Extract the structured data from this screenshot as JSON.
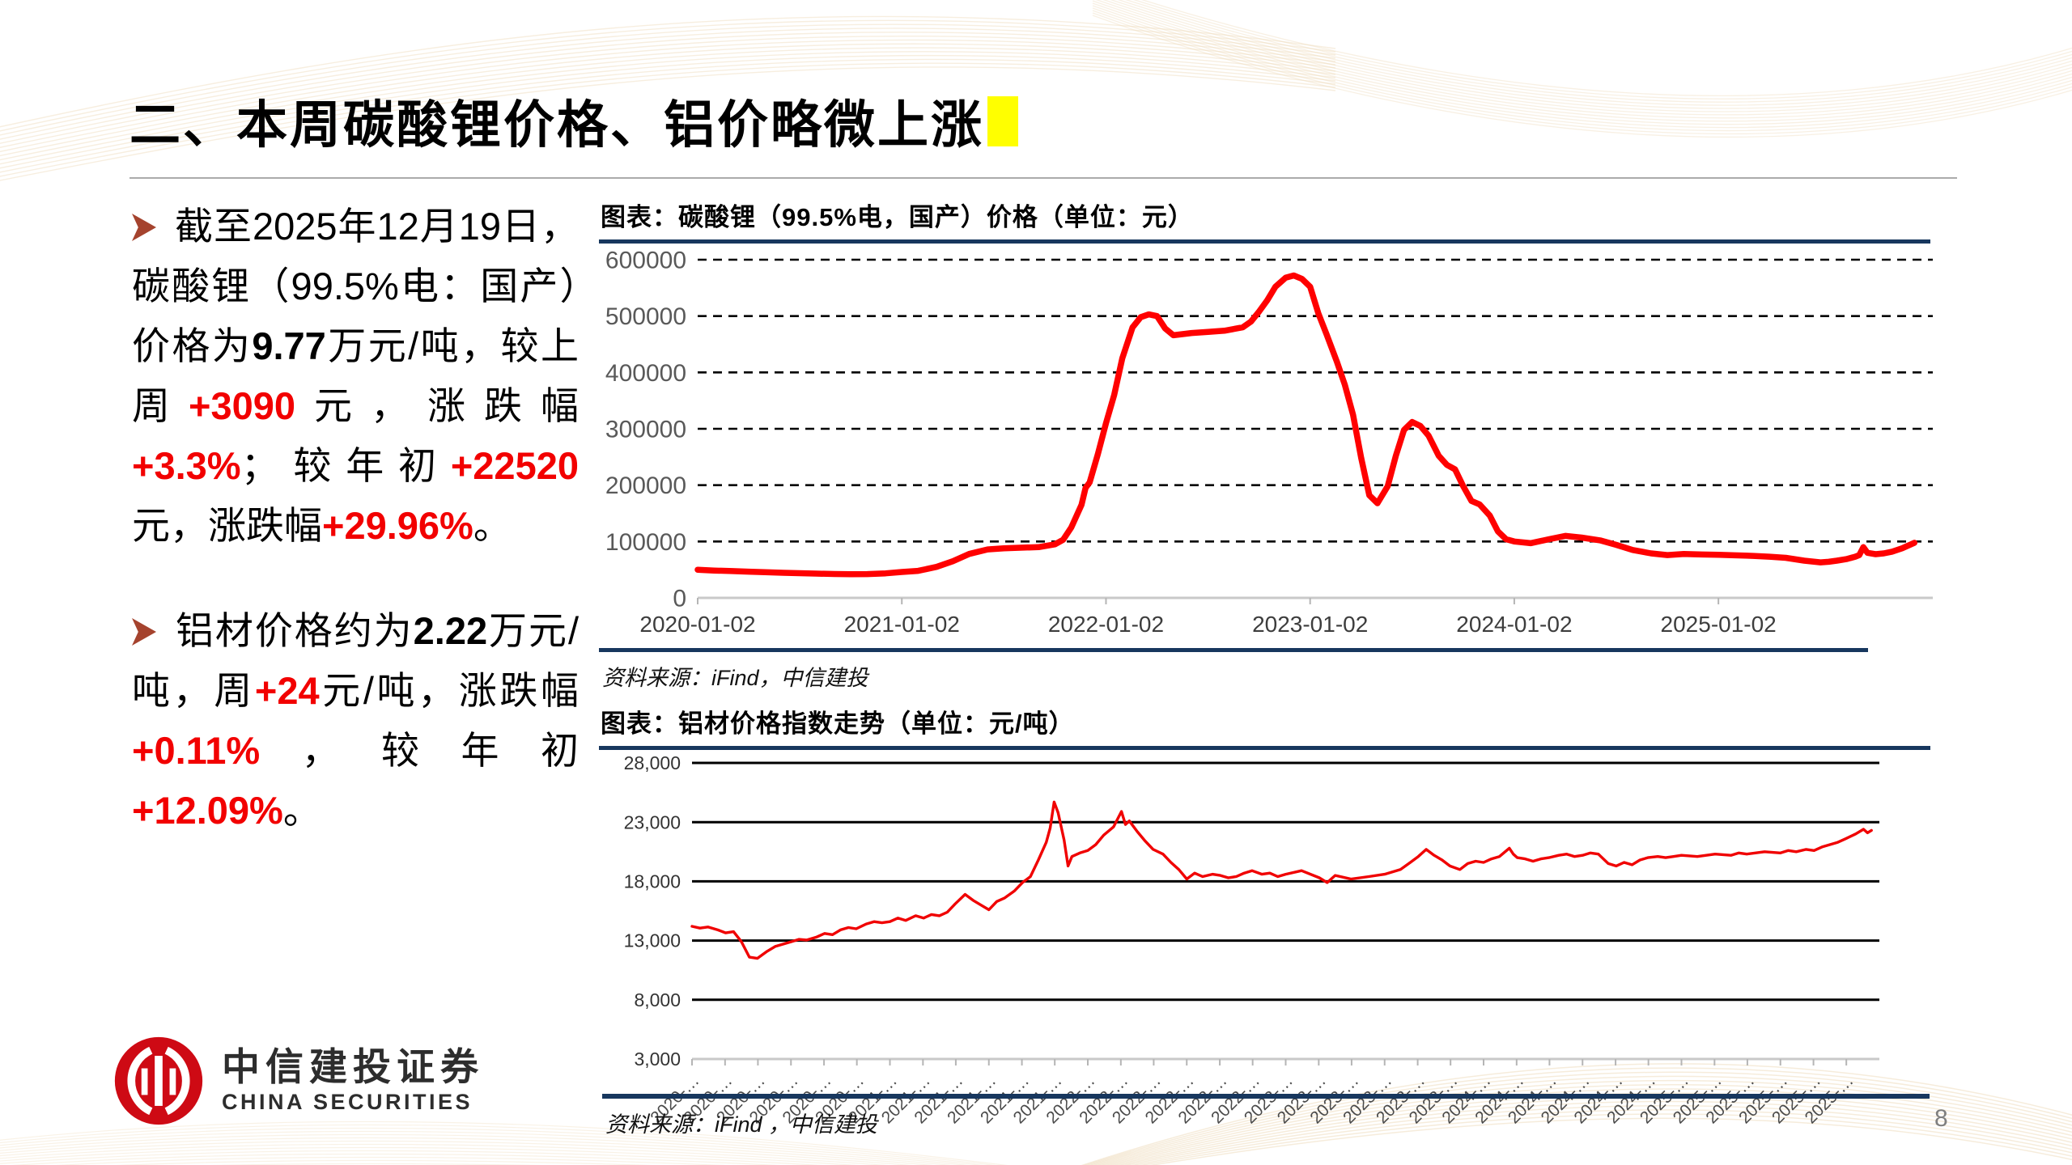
{
  "slide": {
    "title": "二、本周碳酸锂价格、铝价略微上涨",
    "page_number": "8",
    "highlight_color": "#FFFF00",
    "accent_navy": "#17375E",
    "accent_red": "#F20000",
    "bullet_arrow_color": "#A5432E"
  },
  "bullets": [
    {
      "marker": "➢",
      "segments": [
        {
          "t": "截至2025年12月19日，碳酸锂（99.5%电：国产）价格为"
        },
        {
          "t": "9.77",
          "bold": true
        },
        {
          "t": "万元/吨，较上周"
        },
        {
          "t": "+3090",
          "red": true
        },
        {
          "t": "元，涨跌幅"
        },
        {
          "t": "+3.3%",
          "red": true
        },
        {
          "t": "；较年初"
        },
        {
          "t": "+22520 ",
          "red": true
        },
        {
          "t": "元，涨跌幅"
        },
        {
          "t": "+29.96%",
          "red": true
        },
        {
          "t": "。"
        }
      ]
    },
    {
      "marker": "➢",
      "segments": [
        {
          "t": "铝材价格约为"
        },
        {
          "t": "2.22",
          "bold": true
        },
        {
          "t": "万元/吨，周"
        },
        {
          "t": "+24",
          "red": true
        },
        {
          "t": "元/吨，涨跌幅"
        },
        {
          "t": "+0.11%",
          "red": true
        },
        {
          "t": "，较年初"
        },
        {
          "t": "+12.09%",
          "red": true
        },
        {
          "t": "。"
        }
      ]
    }
  ],
  "chart_data": [
    {
      "type": "line",
      "header": "图表：碳酸锂（99.5%电，国产）价格（单位：元）",
      "title": "碳酸锂（99.5%电，国产）价格",
      "unit": "元",
      "source": "资料来源：iFind，中信建投",
      "color": "#FF0000",
      "grid": "dashed",
      "legend": "none",
      "ylim": [
        0,
        600000
      ],
      "yticks": [
        0,
        100000,
        200000,
        300000,
        400000,
        500000,
        600000
      ],
      "ytick_labels": [
        "0",
        "100000",
        "200000",
        "300000",
        "400000",
        "500000",
        "600000"
      ],
      "xlim": [
        2020,
        2026.05
      ],
      "xticks": [
        2020,
        2021,
        2022,
        2023,
        2024,
        2025
      ],
      "xtick_labels": [
        "2020-01-02",
        "2021-01-02",
        "2022-01-02",
        "2023-01-02",
        "2024-01-02",
        "2025-01-02"
      ],
      "points": [
        [
          2020.0,
          50000
        ],
        [
          2020.08,
          48500
        ],
        [
          2020.17,
          47500
        ],
        [
          2020.25,
          46500
        ],
        [
          2020.33,
          45500
        ],
        [
          2020.42,
          44500
        ],
        [
          2020.5,
          43800
        ],
        [
          2020.58,
          43000
        ],
        [
          2020.67,
          42300
        ],
        [
          2020.75,
          42000
        ],
        [
          2020.83,
          42200
        ],
        [
          2020.92,
          43500
        ],
        [
          2021.0,
          46000
        ],
        [
          2021.08,
          48000
        ],
        [
          2021.17,
          55000
        ],
        [
          2021.25,
          65000
        ],
        [
          2021.33,
          78000
        ],
        [
          2021.42,
          86000
        ],
        [
          2021.5,
          88000
        ],
        [
          2021.58,
          89000
        ],
        [
          2021.67,
          90000
        ],
        [
          2021.75,
          95000
        ],
        [
          2021.79,
          103000
        ],
        [
          2021.83,
          125000
        ],
        [
          2021.88,
          165000
        ],
        [
          2021.9,
          195000
        ],
        [
          2021.92,
          205000
        ],
        [
          2021.96,
          255000
        ],
        [
          2022.0,
          310000
        ],
        [
          2022.04,
          360000
        ],
        [
          2022.08,
          425000
        ],
        [
          2022.13,
          480000
        ],
        [
          2022.17,
          498000
        ],
        [
          2022.21,
          503000
        ],
        [
          2022.25,
          500000
        ],
        [
          2022.29,
          478000
        ],
        [
          2022.33,
          466000
        ],
        [
          2022.42,
          470000
        ],
        [
          2022.5,
          472000
        ],
        [
          2022.58,
          474000
        ],
        [
          2022.67,
          480000
        ],
        [
          2022.71,
          490000
        ],
        [
          2022.75,
          508000
        ],
        [
          2022.79,
          528000
        ],
        [
          2022.83,
          552000
        ],
        [
          2022.88,
          568000
        ],
        [
          2022.92,
          572000
        ],
        [
          2022.96,
          566000
        ],
        [
          2023.0,
          552000
        ],
        [
          2023.04,
          505000
        ],
        [
          2023.08,
          468000
        ],
        [
          2023.13,
          420000
        ],
        [
          2023.17,
          378000
        ],
        [
          2023.21,
          325000
        ],
        [
          2023.25,
          248000
        ],
        [
          2023.29,
          182000
        ],
        [
          2023.33,
          168000
        ],
        [
          2023.38,
          198000
        ],
        [
          2023.42,
          252000
        ],
        [
          2023.46,
          298000
        ],
        [
          2023.5,
          312000
        ],
        [
          2023.54,
          305000
        ],
        [
          2023.58,
          288000
        ],
        [
          2023.63,
          252000
        ],
        [
          2023.67,
          236000
        ],
        [
          2023.71,
          228000
        ],
        [
          2023.75,
          198000
        ],
        [
          2023.79,
          172000
        ],
        [
          2023.83,
          166000
        ],
        [
          2023.88,
          146000
        ],
        [
          2023.92,
          118000
        ],
        [
          2023.96,
          104000
        ],
        [
          2024.0,
          100000
        ],
        [
          2024.08,
          97000
        ],
        [
          2024.17,
          104000
        ],
        [
          2024.25,
          110000
        ],
        [
          2024.33,
          107000
        ],
        [
          2024.42,
          102000
        ],
        [
          2024.5,
          94000
        ],
        [
          2024.58,
          85000
        ],
        [
          2024.67,
          79000
        ],
        [
          2024.75,
          76000
        ],
        [
          2024.83,
          78000
        ],
        [
          2024.92,
          77000
        ],
        [
          2025.0,
          76500
        ],
        [
          2025.08,
          75500
        ],
        [
          2025.17,
          74500
        ],
        [
          2025.25,
          73000
        ],
        [
          2025.33,
          71000
        ],
        [
          2025.42,
          66000
        ],
        [
          2025.5,
          63000
        ],
        [
          2025.54,
          64000
        ],
        [
          2025.58,
          66000
        ],
        [
          2025.63,
          69000
        ],
        [
          2025.67,
          73000
        ],
        [
          2025.69,
          76000
        ],
        [
          2025.71,
          90000
        ],
        [
          2025.73,
          80000
        ],
        [
          2025.77,
          77500
        ],
        [
          2025.81,
          79000
        ],
        [
          2025.85,
          82000
        ],
        [
          2025.9,
          88000
        ],
        [
          2025.96,
          97700
        ]
      ]
    },
    {
      "type": "line",
      "header": "图表：铝材价格指数走势（单位：元/吨）",
      "title": "铝材价格指数走势",
      "unit": "元/吨",
      "source": "资料来源：iFind ，中信建投",
      "color": "#F00000",
      "grid": "solid",
      "legend": "none",
      "ylim": [
        3000,
        28000
      ],
      "yticks": [
        3000,
        8000,
        13000,
        18000,
        23000,
        28000
      ],
      "ytick_labels": [
        "3,000",
        "8,000",
        "13,000",
        "18,000",
        "23,000",
        "28,000"
      ],
      "xlim": [
        2020,
        2026.0
      ],
      "xticks": [
        2020.0,
        2020.167,
        2020.333,
        2020.5,
        2020.667,
        2020.833,
        2021.0,
        2021.167,
        2021.333,
        2021.5,
        2021.667,
        2021.833,
        2022.0,
        2022.167,
        2022.333,
        2022.5,
        2022.667,
        2022.833,
        2023.0,
        2023.167,
        2023.333,
        2023.5,
        2023.667,
        2023.833,
        2024.0,
        2024.167,
        2024.333,
        2024.5,
        2024.667,
        2024.833,
        2025.0,
        2025.167,
        2025.333,
        2025.5,
        2025.667,
        2025.833
      ],
      "xtick_labels": [
        "2020-…",
        "2020-…",
        "2020-…",
        "2020-…",
        "2020-…",
        "2020-…",
        "2021-…",
        "2021-…",
        "2021-…",
        "2021-…",
        "2021-…",
        "2021-…",
        "2022-…",
        "2022-…",
        "2022-…",
        "2022-…",
        "2022-…",
        "2022-…",
        "2023-…",
        "2023-…",
        "2023-…",
        "2023-…",
        "2023-…",
        "2023-…",
        "2024-…",
        "2024-…",
        "2024-…",
        "2024-…",
        "2024-…",
        "2024-…",
        "2025-…",
        "2025-…",
        "2025-…",
        "2025-…",
        "2025-…",
        "2025-…"
      ],
      "points": [
        [
          2020.0,
          14200
        ],
        [
          2020.04,
          14050
        ],
        [
          2020.08,
          14150
        ],
        [
          2020.13,
          13900
        ],
        [
          2020.17,
          13650
        ],
        [
          2020.21,
          13750
        ],
        [
          2020.25,
          12900
        ],
        [
          2020.29,
          11600
        ],
        [
          2020.33,
          11500
        ],
        [
          2020.38,
          12100
        ],
        [
          2020.42,
          12500
        ],
        [
          2020.46,
          12700
        ],
        [
          2020.5,
          12900
        ],
        [
          2020.54,
          13100
        ],
        [
          2020.58,
          13050
        ],
        [
          2020.63,
          13300
        ],
        [
          2020.67,
          13600
        ],
        [
          2020.71,
          13500
        ],
        [
          2020.75,
          13900
        ],
        [
          2020.79,
          14100
        ],
        [
          2020.83,
          14000
        ],
        [
          2020.88,
          14400
        ],
        [
          2020.92,
          14600
        ],
        [
          2020.96,
          14500
        ],
        [
          2021.0,
          14600
        ],
        [
          2021.04,
          14900
        ],
        [
          2021.08,
          14700
        ],
        [
          2021.13,
          15100
        ],
        [
          2021.17,
          14900
        ],
        [
          2021.21,
          15200
        ],
        [
          2021.25,
          15100
        ],
        [
          2021.29,
          15400
        ],
        [
          2021.33,
          16100
        ],
        [
          2021.38,
          16900
        ],
        [
          2021.42,
          16400
        ],
        [
          2021.46,
          16000
        ],
        [
          2021.5,
          15600
        ],
        [
          2021.54,
          16300
        ],
        [
          2021.58,
          16600
        ],
        [
          2021.63,
          17200
        ],
        [
          2021.67,
          17900
        ],
        [
          2021.71,
          18400
        ],
        [
          2021.75,
          19800
        ],
        [
          2021.79,
          21300
        ],
        [
          2021.81,
          22500
        ],
        [
          2021.83,
          24700
        ],
        [
          2021.85,
          23800
        ],
        [
          2021.88,
          21500
        ],
        [
          2021.9,
          19300
        ],
        [
          2021.92,
          20100
        ],
        [
          2021.96,
          20400
        ],
        [
          2022.0,
          20600
        ],
        [
          2022.04,
          21100
        ],
        [
          2022.08,
          21900
        ],
        [
          2022.13,
          22600
        ],
        [
          2022.17,
          23900
        ],
        [
          2022.19,
          22800
        ],
        [
          2022.21,
          23100
        ],
        [
          2022.25,
          22200
        ],
        [
          2022.29,
          21400
        ],
        [
          2022.33,
          20700
        ],
        [
          2022.38,
          20300
        ],
        [
          2022.42,
          19600
        ],
        [
          2022.46,
          19000
        ],
        [
          2022.5,
          18200
        ],
        [
          2022.54,
          18700
        ],
        [
          2022.58,
          18400
        ],
        [
          2022.63,
          18600
        ],
        [
          2022.67,
          18500
        ],
        [
          2022.71,
          18300
        ],
        [
          2022.75,
          18400
        ],
        [
          2022.79,
          18700
        ],
        [
          2022.83,
          18900
        ],
        [
          2022.88,
          18600
        ],
        [
          2022.92,
          18700
        ],
        [
          2022.96,
          18400
        ],
        [
          2023.0,
          18600
        ],
        [
          2023.08,
          18900
        ],
        [
          2023.17,
          18300
        ],
        [
          2023.21,
          17900
        ],
        [
          2023.25,
          18500
        ],
        [
          2023.33,
          18200
        ],
        [
          2023.42,
          18400
        ],
        [
          2023.5,
          18600
        ],
        [
          2023.58,
          19000
        ],
        [
          2023.63,
          19600
        ],
        [
          2023.67,
          20100
        ],
        [
          2023.71,
          20700
        ],
        [
          2023.75,
          20200
        ],
        [
          2023.79,
          19800
        ],
        [
          2023.83,
          19300
        ],
        [
          2023.88,
          19000
        ],
        [
          2023.92,
          19500
        ],
        [
          2023.96,
          19700
        ],
        [
          2024.0,
          19600
        ],
        [
          2024.04,
          19900
        ],
        [
          2024.08,
          20100
        ],
        [
          2024.13,
          20800
        ],
        [
          2024.15,
          20300
        ],
        [
          2024.17,
          20000
        ],
        [
          2024.21,
          19900
        ],
        [
          2024.25,
          19700
        ],
        [
          2024.29,
          19900
        ],
        [
          2024.33,
          20000
        ],
        [
          2024.38,
          20200
        ],
        [
          2024.42,
          20300
        ],
        [
          2024.46,
          20100
        ],
        [
          2024.5,
          20200
        ],
        [
          2024.54,
          20400
        ],
        [
          2024.58,
          20300
        ],
        [
          2024.63,
          19500
        ],
        [
          2024.67,
          19300
        ],
        [
          2024.71,
          19600
        ],
        [
          2024.75,
          19400
        ],
        [
          2024.79,
          19800
        ],
        [
          2024.83,
          20000
        ],
        [
          2024.88,
          20100
        ],
        [
          2024.92,
          20000
        ],
        [
          2024.96,
          20100
        ],
        [
          2025.0,
          20200
        ],
        [
          2025.08,
          20100
        ],
        [
          2025.17,
          20300
        ],
        [
          2025.25,
          20200
        ],
        [
          2025.29,
          20400
        ],
        [
          2025.33,
          20300
        ],
        [
          2025.42,
          20500
        ],
        [
          2025.5,
          20400
        ],
        [
          2025.54,
          20600
        ],
        [
          2025.58,
          20500
        ],
        [
          2025.63,
          20700
        ],
        [
          2025.67,
          20600
        ],
        [
          2025.71,
          20900
        ],
        [
          2025.75,
          21100
        ],
        [
          2025.79,
          21300
        ],
        [
          2025.83,
          21600
        ],
        [
          2025.88,
          22000
        ],
        [
          2025.92,
          22400
        ],
        [
          2025.94,
          22100
        ],
        [
          2025.96,
          22300
        ]
      ]
    }
  ],
  "brand": {
    "logo_cn": "中信建投证券",
    "logo_en": "CHINA SECURITIES",
    "logo_red": "#CE0A14"
  }
}
